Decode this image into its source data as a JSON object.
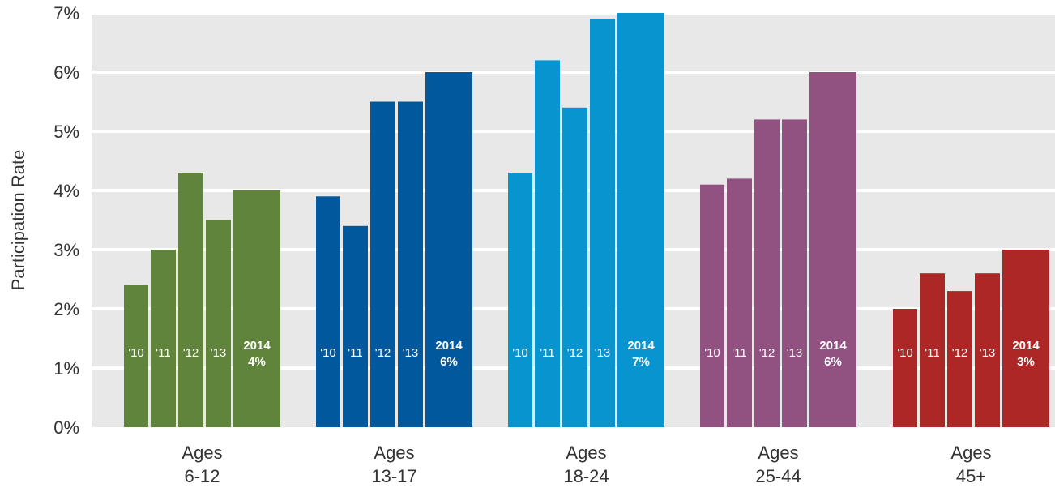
{
  "chart_data": {
    "type": "bar",
    "ylabel": "Participation Rate",
    "ylim": [
      0,
      7
    ],
    "yticks": [
      "0%",
      "1%",
      "2%",
      "3%",
      "4%",
      "5%",
      "6%",
      "7%"
    ],
    "grid": true,
    "groups": [
      {
        "label_line1": "Ages",
        "label_line2": "6-12",
        "color": "#61843d",
        "bars": [
          {
            "year": "'10",
            "value": 2.4
          },
          {
            "year": "'11",
            "value": 3.0
          },
          {
            "year": "'12",
            "value": 4.3
          },
          {
            "year": "'13",
            "value": 3.5
          },
          {
            "year": "2014",
            "value": 4.0,
            "value_label": "4%"
          }
        ]
      },
      {
        "label_line1": "Ages",
        "label_line2": "13-17",
        "color": "#01589d",
        "bars": [
          {
            "year": "'10",
            "value": 3.9
          },
          {
            "year": "'11",
            "value": 3.4
          },
          {
            "year": "'12",
            "value": 5.5
          },
          {
            "year": "'13",
            "value": 5.5
          },
          {
            "year": "2014",
            "value": 6.0,
            "value_label": "6%"
          }
        ]
      },
      {
        "label_line1": "Ages",
        "label_line2": "18-24",
        "color": "#0894cf",
        "bars": [
          {
            "year": "'10",
            "value": 4.3
          },
          {
            "year": "'11",
            "value": 6.2
          },
          {
            "year": "'12",
            "value": 5.4
          },
          {
            "year": "'13",
            "value": 6.9
          },
          {
            "year": "2014",
            "value": 7.0,
            "value_label": "7%"
          }
        ]
      },
      {
        "label_line1": "Ages",
        "label_line2": "25-44",
        "color": "#915282",
        "bars": [
          {
            "year": "'10",
            "value": 4.1
          },
          {
            "year": "'11",
            "value": 4.2
          },
          {
            "year": "'12",
            "value": 5.2
          },
          {
            "year": "'13",
            "value": 5.2
          },
          {
            "year": "2014",
            "value": 6.0,
            "value_label": "6%"
          }
        ]
      },
      {
        "label_line1": "Ages",
        "label_line2": "45+",
        "color": "#ad2726",
        "bars": [
          {
            "year": "'10",
            "value": 2.0
          },
          {
            "year": "'11",
            "value": 2.6
          },
          {
            "year": "'12",
            "value": 2.3
          },
          {
            "year": "'13",
            "value": 2.6
          },
          {
            "year": "2014",
            "value": 3.0,
            "value_label": "3%"
          }
        ]
      }
    ]
  },
  "colors": {
    "plot_background": "#e8e8e8",
    "gridline": "#ffffff"
  }
}
